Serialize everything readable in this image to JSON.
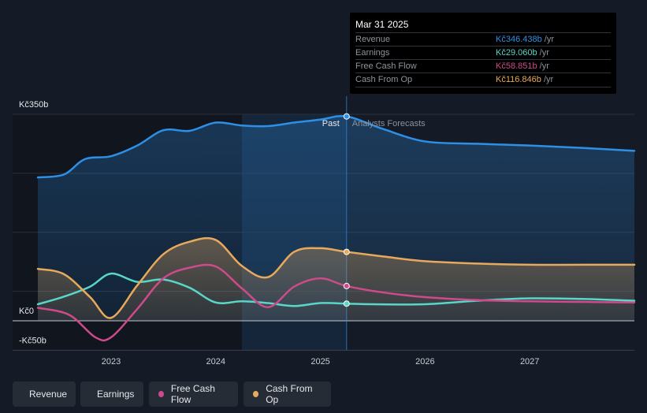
{
  "chart_data": {
    "type": "line",
    "x_unit": "year",
    "xlim": [
      2022.3,
      2028.0
    ],
    "ylim": [
      -50,
      350
    ],
    "y_labels": [
      {
        "value": 350,
        "text": "Kč350b"
      },
      {
        "value": 0,
        "text": "Kč0"
      },
      {
        "value": -50,
        "text": "-Kč50b"
      }
    ],
    "x_ticks": [
      {
        "value": 2023,
        "text": "2023"
      },
      {
        "value": 2024,
        "text": "2024"
      },
      {
        "value": 2025,
        "text": "2025"
      },
      {
        "value": 2026,
        "text": "2026"
      },
      {
        "value": 2027,
        "text": "2027"
      }
    ],
    "past_label": "Past",
    "forecast_label": "Analysts Forecasts",
    "divider_x": 2025.25,
    "series": [
      {
        "name": "Revenue",
        "color": "#2e8fe6",
        "fill": true,
        "points": [
          [
            2022.3,
            243
          ],
          [
            2022.55,
            248
          ],
          [
            2022.75,
            274
          ],
          [
            2023.0,
            279
          ],
          [
            2023.25,
            297
          ],
          [
            2023.5,
            323
          ],
          [
            2023.75,
            322
          ],
          [
            2024.0,
            336
          ],
          [
            2024.25,
            331
          ],
          [
            2024.5,
            330
          ],
          [
            2024.75,
            336
          ],
          [
            2025.0,
            341
          ],
          [
            2025.25,
            346.4
          ],
          [
            2025.6,
            325
          ],
          [
            2026.0,
            304
          ],
          [
            2026.5,
            300
          ],
          [
            2027.0,
            297
          ],
          [
            2027.5,
            293
          ],
          [
            2028.0,
            288
          ]
        ]
      },
      {
        "name": "Earnings",
        "color": "#58d6c8",
        "fill": false,
        "points": [
          [
            2022.3,
            28
          ],
          [
            2022.55,
            41
          ],
          [
            2022.8,
            58
          ],
          [
            2023.0,
            80
          ],
          [
            2023.25,
            66
          ],
          [
            2023.5,
            70
          ],
          [
            2023.75,
            56
          ],
          [
            2024.0,
            31
          ],
          [
            2024.25,
            33
          ],
          [
            2024.5,
            30
          ],
          [
            2024.75,
            25
          ],
          [
            2025.0,
            30
          ],
          [
            2025.25,
            29.1
          ],
          [
            2025.5,
            28
          ],
          [
            2026.0,
            28
          ],
          [
            2026.5,
            34
          ],
          [
            2027.0,
            38
          ],
          [
            2027.5,
            37
          ],
          [
            2028.0,
            34
          ]
        ]
      },
      {
        "name": "Free Cash Flow",
        "color": "#cf4a8a",
        "fill": false,
        "points": [
          [
            2022.3,
            22
          ],
          [
            2022.6,
            10
          ],
          [
            2022.85,
            -28
          ],
          [
            2023.0,
            -28
          ],
          [
            2023.25,
            20
          ],
          [
            2023.5,
            72
          ],
          [
            2023.75,
            90
          ],
          [
            2024.0,
            92
          ],
          [
            2024.25,
            55
          ],
          [
            2024.5,
            23
          ],
          [
            2024.75,
            58
          ],
          [
            2025.0,
            72
          ],
          [
            2025.25,
            58.9
          ],
          [
            2025.6,
            48
          ],
          [
            2026.0,
            40
          ],
          [
            2026.5,
            35
          ],
          [
            2027.0,
            33
          ],
          [
            2027.5,
            32
          ],
          [
            2028.0,
            31
          ]
        ]
      },
      {
        "name": "Cash From Op",
        "color": "#e8a95c",
        "fill": true,
        "points": [
          [
            2022.3,
            88
          ],
          [
            2022.55,
            79
          ],
          [
            2022.8,
            40
          ],
          [
            2023.0,
            5
          ],
          [
            2023.25,
            60
          ],
          [
            2023.5,
            113
          ],
          [
            2023.75,
            134
          ],
          [
            2024.0,
            137
          ],
          [
            2024.25,
            93
          ],
          [
            2024.5,
            74
          ],
          [
            2024.75,
            117
          ],
          [
            2025.0,
            123
          ],
          [
            2025.25,
            116.8
          ],
          [
            2025.6,
            109
          ],
          [
            2026.0,
            101
          ],
          [
            2026.5,
            97
          ],
          [
            2027.0,
            95
          ],
          [
            2027.5,
            95
          ],
          [
            2028.0,
            95
          ]
        ]
      }
    ],
    "tooltip": {
      "date": "Mar 31 2025",
      "rows": [
        {
          "name": "Revenue",
          "value": "Kč346.438b",
          "unit": "/yr",
          "color": "#2e8fe6"
        },
        {
          "name": "Earnings",
          "value": "Kč29.060b",
          "unit": "/yr",
          "color": "#58d6c8"
        },
        {
          "name": "Free Cash Flow",
          "value": "Kč58.851b",
          "unit": "/yr",
          "color": "#cf4a8a"
        },
        {
          "name": "Cash From Op",
          "value": "Kč116.846b",
          "unit": "/yr",
          "color": "#e8a95c"
        }
      ]
    }
  },
  "legend": [
    {
      "label": "Revenue",
      "color": "#2e8fe6"
    },
    {
      "label": "Earnings",
      "color": "#58d6c8"
    },
    {
      "label": "Free Cash Flow",
      "color": "#cf4a8a"
    },
    {
      "label": "Cash From Op",
      "color": "#e8a95c"
    }
  ]
}
